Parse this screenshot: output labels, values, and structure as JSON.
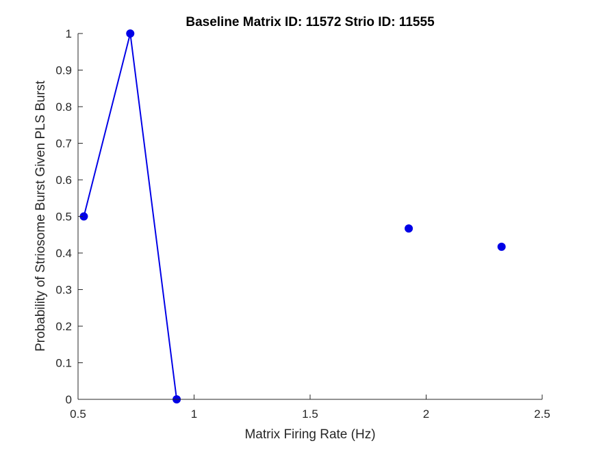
{
  "chart_data": {
    "type": "line",
    "title": "Baseline Matrix ID: 11572 Strio ID: 11555",
    "xlabel": "Matrix Firing Rate (Hz)",
    "ylabel": "Probability of Striosome Burst Given PLS Burst",
    "xlim": [
      0.5,
      2.5
    ],
    "ylim": [
      0,
      1
    ],
    "x_ticks": [
      0.5,
      1,
      1.5,
      2,
      2.5
    ],
    "x_tick_labels": [
      "0.5",
      "1",
      "1.5",
      "2",
      "2.5"
    ],
    "y_ticks": [
      0,
      0.1,
      0.2,
      0.3,
      0.4,
      0.5,
      0.6,
      0.7,
      0.8,
      0.9,
      1
    ],
    "y_tick_labels": [
      "0",
      "0.1",
      "0.2",
      "0.3",
      "0.4",
      "0.5",
      "0.6",
      "0.7",
      "0.8",
      "0.9",
      "1"
    ],
    "grid": false,
    "series": [
      {
        "color": "#0000e6",
        "points": [
          {
            "x": 0.525,
            "y": 0.5
          },
          {
            "x": 0.725,
            "y": 1.0
          },
          {
            "x": 0.925,
            "y": 0.0
          },
          {
            "x": 1.125,
            "y": null
          },
          {
            "x": 1.325,
            "y": null
          },
          {
            "x": 1.525,
            "y": null
          },
          {
            "x": 1.725,
            "y": null
          },
          {
            "x": 1.925,
            "y": 0.467
          },
          {
            "x": 2.125,
            "y": null
          },
          {
            "x": 2.325,
            "y": 0.417
          }
        ]
      }
    ]
  }
}
